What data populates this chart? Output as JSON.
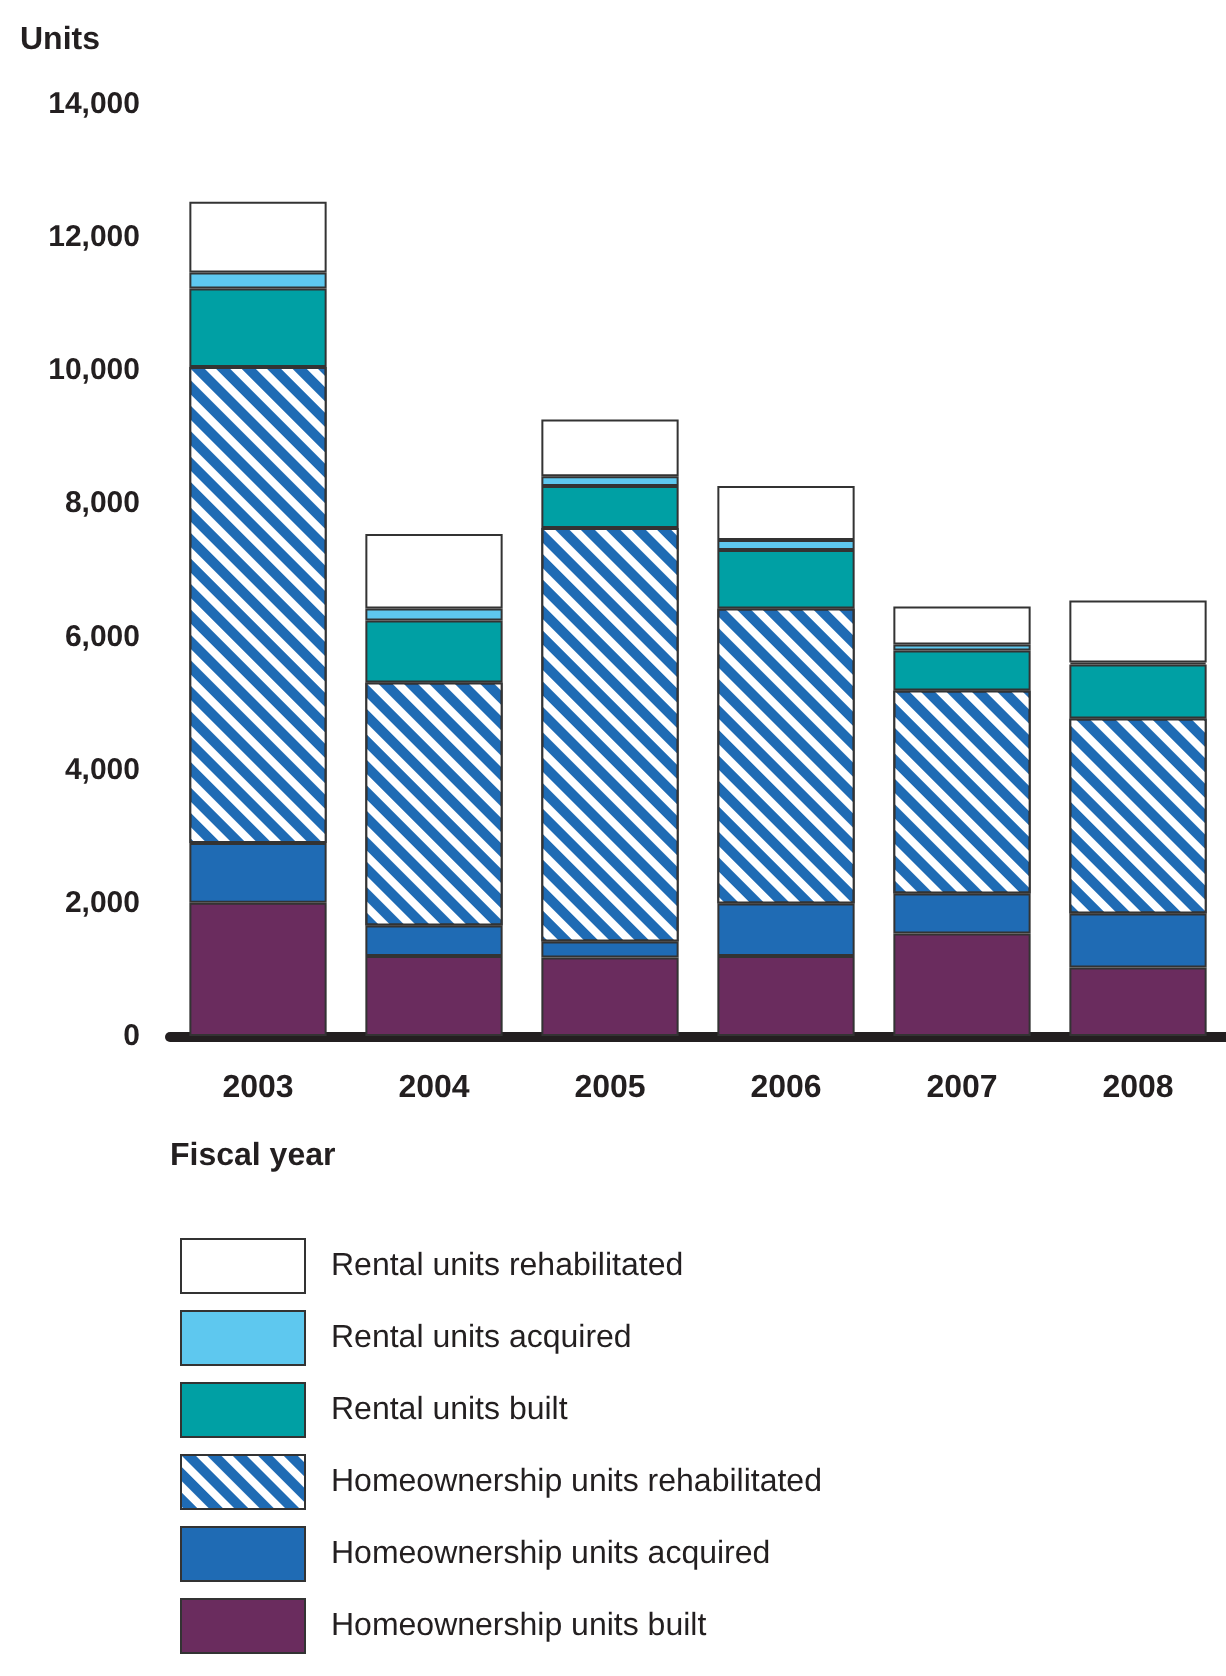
{
  "chart_data": {
    "type": "bar",
    "stacked": true,
    "xlabel": "Fiscal year",
    "ylabel": "Units",
    "categories": [
      "2003",
      "2004",
      "2005",
      "2006",
      "2007",
      "2008"
    ],
    "series": [
      {
        "name": "Homeownership units built",
        "color": "#6a2c5e",
        "values": [
          2000,
          1200,
          1180,
          1200,
          1540,
          1030
        ]
      },
      {
        "name": "Homeownership units acquired",
        "color": "#1f6bb4",
        "values": [
          900,
          460,
          240,
          790,
          600,
          810
        ]
      },
      {
        "name": "Homeownership units rehabilitated",
        "color": "#1f6bb4",
        "values": [
          7150,
          3650,
          6210,
          4430,
          3050,
          2930
        ]
      },
      {
        "name": "Rental units built",
        "color": "#00a0a4",
        "values": [
          1180,
          930,
          630,
          880,
          600,
          810
        ]
      },
      {
        "name": "Rental units acquired",
        "color": "#5ec8ef",
        "values": [
          240,
          180,
          150,
          150,
          90,
          30
        ]
      },
      {
        "name": "Rental units rehabilitated",
        "color": "#ffffff",
        "values": [
          1060,
          1120,
          850,
          810,
          570,
          930
        ]
      }
    ],
    "ylim": [
      0,
      14000
    ],
    "yticks": [
      0,
      {
        "value": 2000,
        "label": "2,000"
      },
      {
        "value": 4000,
        "label": "4,000"
      },
      {
        "value": 6000,
        "label": "6,000"
      },
      {
        "value": 8000,
        "label": "8,000"
      },
      {
        "value": 10000,
        "label": "10,000"
      },
      {
        "value": 12000,
        "label": "12,000"
      },
      {
        "value": 14000,
        "label": "14,000"
      }
    ],
    "grid": false,
    "legend": "bottom"
  }
}
